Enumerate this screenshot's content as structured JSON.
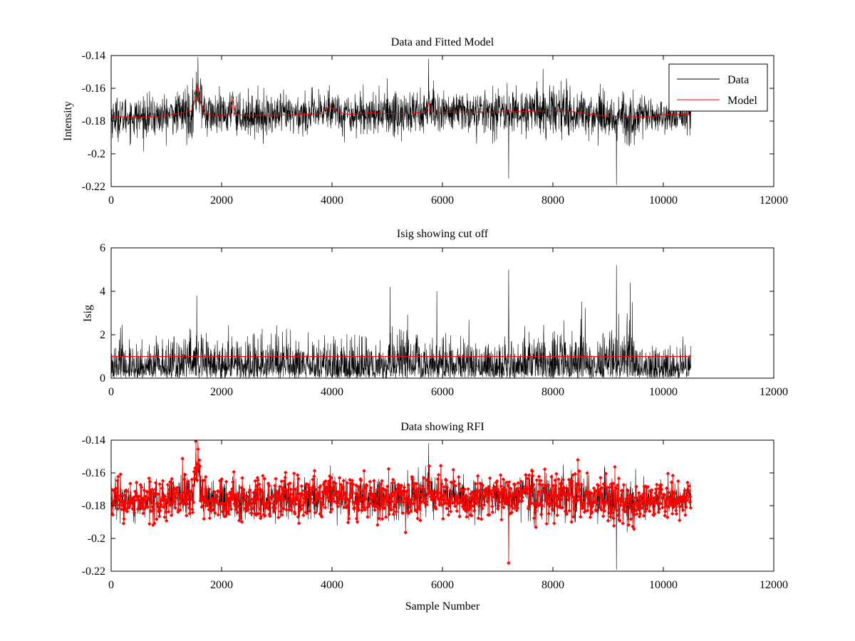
{
  "chart_data": [
    {
      "type": "line",
      "title": "Data and Fitted Model",
      "xlabel": "",
      "ylabel": "Intensity",
      "xlim": [
        0,
        12000
      ],
      "ylim": [
        -0.22,
        -0.14
      ],
      "xticks": [
        0,
        2000,
        4000,
        6000,
        8000,
        10000,
        12000
      ],
      "xtick_labels": [
        "0",
        "2000",
        "4000",
        "6000",
        "8000",
        "10000",
        "12000"
      ],
      "yticks": [
        -0.22,
        -0.2,
        -0.18,
        -0.16,
        -0.14
      ],
      "ytick_labels": [
        "-0.22",
        "-0.2",
        "-0.18",
        "-0.16",
        "-0.14"
      ],
      "legend": {
        "position": "top-right",
        "entries": [
          "Data",
          "Model"
        ]
      },
      "series": [
        {
          "name": "Data",
          "color": "#000000",
          "kind": "noisy-line",
          "x_range": [
            0,
            10500
          ],
          "baseline": -0.176,
          "spread": 0.011,
          "peaks": [
            [
              1570,
              -0.141
            ],
            [
              2200,
              -0.162
            ],
            [
              5750,
              -0.142
            ],
            [
              3950,
              -0.158
            ],
            [
              9150,
              -0.219
            ],
            [
              7200,
              -0.215
            ]
          ]
        },
        {
          "name": "Model",
          "color": "#ff0000",
          "x": [
            0,
            800,
            1200,
            1450,
            1520,
            1570,
            1620,
            1700,
            1900,
            2150,
            2200,
            2250,
            2400,
            3000,
            3800,
            3950,
            4100,
            4300,
            4700,
            5000,
            5400,
            5700,
            5750,
            5800,
            6200,
            7000,
            7600,
            8200,
            8600,
            9000,
            9500,
            9800,
            10000,
            10500
          ],
          "y": [
            -0.1775,
            -0.1775,
            -0.1755,
            -0.174,
            -0.168,
            -0.158,
            -0.168,
            -0.1755,
            -0.177,
            -0.176,
            -0.167,
            -0.176,
            -0.1765,
            -0.1765,
            -0.1755,
            -0.171,
            -0.1745,
            -0.176,
            -0.175,
            -0.1755,
            -0.1755,
            -0.1745,
            -0.1685,
            -0.1745,
            -0.1745,
            -0.1745,
            -0.174,
            -0.1735,
            -0.1755,
            -0.177,
            -0.1775,
            -0.1775,
            -0.176,
            -0.176
          ]
        }
      ]
    },
    {
      "type": "line",
      "title": "Isig showing cut off",
      "xlabel": "",
      "ylabel": "Isig",
      "xlim": [
        0,
        12000
      ],
      "ylim": [
        0,
        6
      ],
      "xticks": [
        0,
        2000,
        4000,
        6000,
        8000,
        10000,
        12000
      ],
      "xtick_labels": [
        "0",
        "2000",
        "4000",
        "6000",
        "8000",
        "10000",
        "12000"
      ],
      "yticks": [
        0,
        2,
        4,
        6
      ],
      "ytick_labels": [
        "0",
        "2",
        "4",
        "6"
      ],
      "series": [
        {
          "name": "Isig",
          "color": "#000000",
          "kind": "noisy-positive",
          "x_range": [
            0,
            10500
          ],
          "scale": 0.8,
          "peaks": [
            [
              7200,
              5.0
            ],
            [
              9150,
              5.2
            ],
            [
              5050,
              4.2
            ],
            [
              9400,
              4.4
            ],
            [
              1550,
              3.8
            ],
            [
              5900,
              4.0
            ]
          ]
        },
        {
          "name": "cut off",
          "color": "#ff0000",
          "x": [
            0,
            10500
          ],
          "y": [
            1.0,
            1.0
          ]
        }
      ]
    },
    {
      "type": "line",
      "title": "Data showing RFI",
      "xlabel": "Sample Number",
      "ylabel": "",
      "xlim": [
        0,
        12000
      ],
      "ylim": [
        -0.22,
        -0.14
      ],
      "xticks": [
        0,
        2000,
        4000,
        6000,
        8000,
        10000,
        12000
      ],
      "xtick_labels": [
        "0",
        "2000",
        "4000",
        "6000",
        "8000",
        "10000",
        "12000"
      ],
      "yticks": [
        -0.22,
        -0.2,
        -0.18,
        -0.16,
        -0.14
      ],
      "ytick_labels": [
        "-0.22",
        "-0.2",
        "-0.18",
        "-0.16",
        "-0.14"
      ],
      "series": [
        {
          "name": "Data",
          "color": "#000000",
          "kind": "noisy-line",
          "x_range": [
            0,
            10500
          ],
          "baseline": -0.176,
          "spread": 0.011,
          "peaks": [
            [
              1570,
              -0.141
            ],
            [
              5750,
              -0.142
            ],
            [
              9150,
              -0.219
            ],
            [
              7200,
              -0.215
            ]
          ]
        },
        {
          "name": "RFI",
          "color": "#ff0000",
          "kind": "marked-points",
          "marker": "diamond"
        }
      ]
    }
  ]
}
